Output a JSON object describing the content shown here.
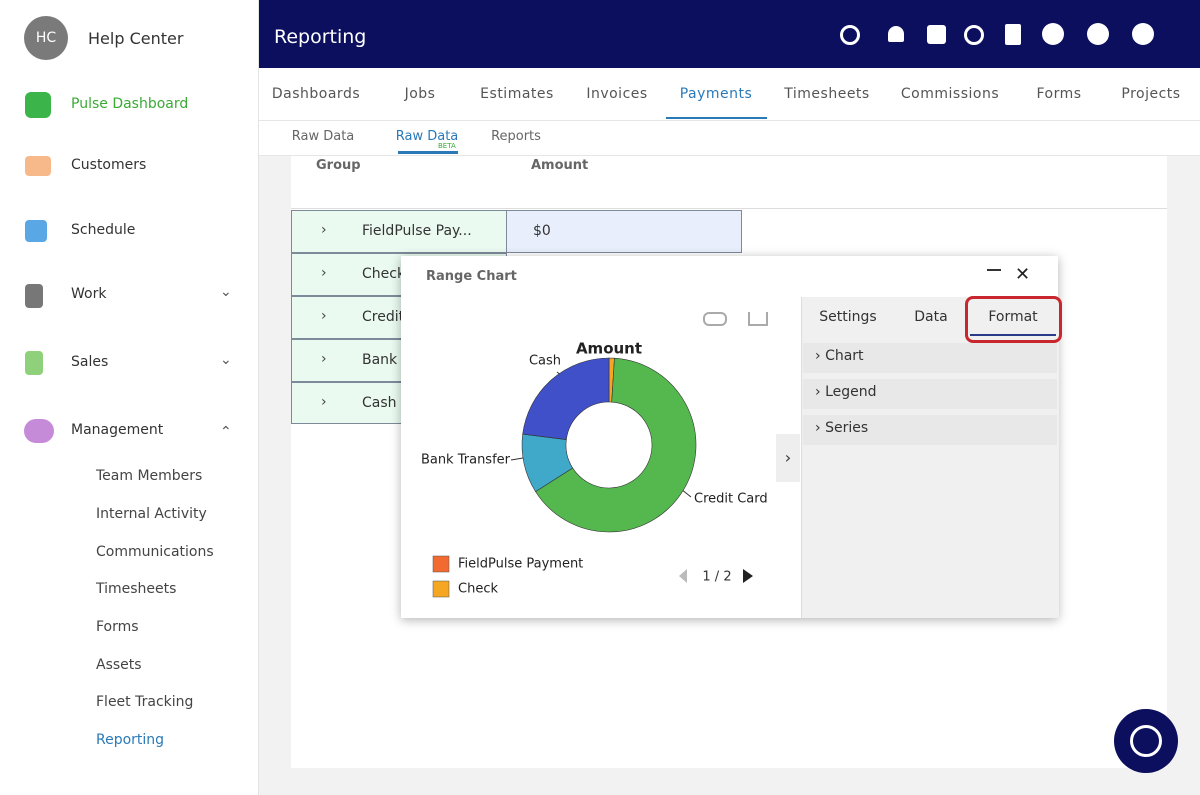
{
  "sidebar": {
    "avatar": "HC",
    "title": "Help Center",
    "items": [
      "Pulse Dashboard",
      "Customers",
      "Schedule",
      "Work",
      "Sales",
      "Management"
    ],
    "sub_items": [
      "Team Members",
      "Internal Activity",
      "Communications",
      "Timesheets",
      "Forms",
      "Assets",
      "Fleet Tracking",
      "Reporting"
    ]
  },
  "header": {
    "title": "Reporting"
  },
  "tabs": [
    "Dashboards",
    "Jobs",
    "Estimates",
    "Invoices",
    "Payments",
    "Timesheets",
    "Commissions",
    "Forms",
    "Projects"
  ],
  "sub_tabs": [
    "Raw Data",
    "Raw Data",
    "Reports"
  ],
  "badge": "BETA",
  "table": {
    "columns": [
      "Group",
      "Amount"
    ],
    "rows": [
      [
        "FieldPulse Pay...",
        "$0"
      ],
      [
        "Check"
      ],
      [
        "Credit"
      ],
      [
        "Bank T"
      ],
      [
        "Cash"
      ]
    ]
  },
  "dialog": {
    "title": "Range Chart",
    "tabs": [
      "Settings",
      "Data",
      "Format"
    ],
    "sections": [
      "Chart",
      "Legend",
      "Series"
    ],
    "pager": "1 / 2"
  },
  "chart_data": {
    "type": "pie",
    "title": "Amount",
    "categories": [
      "FieldPulse Payment",
      "Check",
      "Credit Card",
      "Bank Transfer",
      "Cash"
    ],
    "values": [
      0,
      1,
      65,
      11,
      23
    ],
    "colors": [
      "#f26a30",
      "#f5a623",
      "#55b84f",
      "#40a8c8",
      "#4050c8"
    ]
  }
}
